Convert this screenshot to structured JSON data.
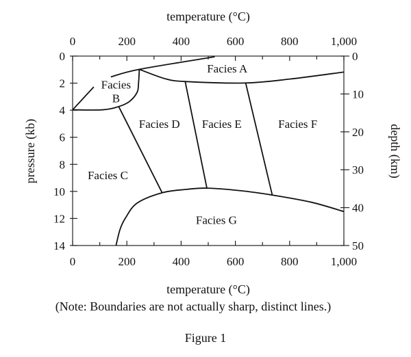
{
  "chart_data": {
    "type": "line",
    "top_xlabel": "temperature (°C)",
    "xlabel": "temperature (°C)",
    "ylabel": "pressure (kb)",
    "y2label": "depth (km)",
    "xlim": [
      0,
      1000
    ],
    "ylim": [
      0,
      14
    ],
    "y2lim": [
      0,
      50
    ],
    "y_inverted": true,
    "x_ticks": [
      0,
      200,
      400,
      600,
      800,
      1000
    ],
    "x_tick_labels": [
      "0",
      "200",
      "400",
      "600",
      "800",
      "1,000"
    ],
    "y_ticks": [
      0,
      2,
      4,
      6,
      8,
      10,
      12,
      14
    ],
    "y2_ticks": [
      0,
      10,
      20,
      30,
      40,
      50
    ],
    "boundaries": [
      {
        "id": "a-top",
        "points": [
          [
            141,
            1.54
          ],
          [
            246,
            0.98
          ],
          [
            524,
            0.05
          ]
        ]
      },
      {
        "id": "a-bottom",
        "points": [
          [
            246,
            0.98
          ],
          [
            339,
            1.66
          ],
          [
            415,
            1.88
          ],
          [
            634,
            1.99
          ],
          [
            800,
            1.7
          ],
          [
            1000,
            1.18
          ]
        ]
      },
      {
        "id": "b-right",
        "points": [
          [
            246,
            0.98
          ],
          [
            243,
            2.0
          ],
          [
            238,
            2.67
          ],
          [
            210,
            3.35
          ],
          [
            170,
            3.73
          ],
          [
            111,
            3.97
          ],
          [
            0,
            3.97
          ]
        ]
      },
      {
        "id": "b-left",
        "points": [
          [
            0,
            3.97
          ],
          [
            78,
            2.28
          ]
        ]
      },
      {
        "id": "c-d",
        "points": [
          [
            170,
            3.73
          ],
          [
            330,
            10.1
          ]
        ]
      },
      {
        "id": "d-e",
        "points": [
          [
            415,
            1.88
          ],
          [
            495,
            9.76
          ]
        ]
      },
      {
        "id": "e-f",
        "points": [
          [
            638,
            1.99
          ],
          [
            736,
            10.27
          ]
        ]
      },
      {
        "id": "g-top",
        "points": [
          [
            160,
            14
          ],
          [
            175,
            12.8
          ],
          [
            195,
            11.96
          ],
          [
            238,
            10.86
          ],
          [
            330,
            10.1
          ],
          [
            420,
            9.85
          ],
          [
            495,
            9.76
          ],
          [
            620,
            9.95
          ],
          [
            736,
            10.27
          ],
          [
            880,
            10.8
          ],
          [
            1000,
            11.49
          ]
        ]
      }
    ],
    "regions": [
      {
        "label": "Facies A",
        "at": [
          570,
          0.9
        ]
      },
      {
        "label": "Facies",
        "at": [
          160,
          2.1
        ]
      },
      {
        "label": "B",
        "at": [
          160,
          3.1
        ]
      },
      {
        "label": "Facies C",
        "at": [
          130,
          8.8
        ]
      },
      {
        "label": "Facies D",
        "at": [
          320,
          5.0
        ]
      },
      {
        "label": "Facies E",
        "at": [
          550,
          5.0
        ]
      },
      {
        "label": "Facies F",
        "at": [
          830,
          5.0
        ]
      },
      {
        "label": "Facies G",
        "at": [
          530,
          12.1
        ]
      }
    ]
  },
  "note": "(Note: Boundaries are not actually sharp, distinct lines.)",
  "figure_caption": "Figure 1"
}
